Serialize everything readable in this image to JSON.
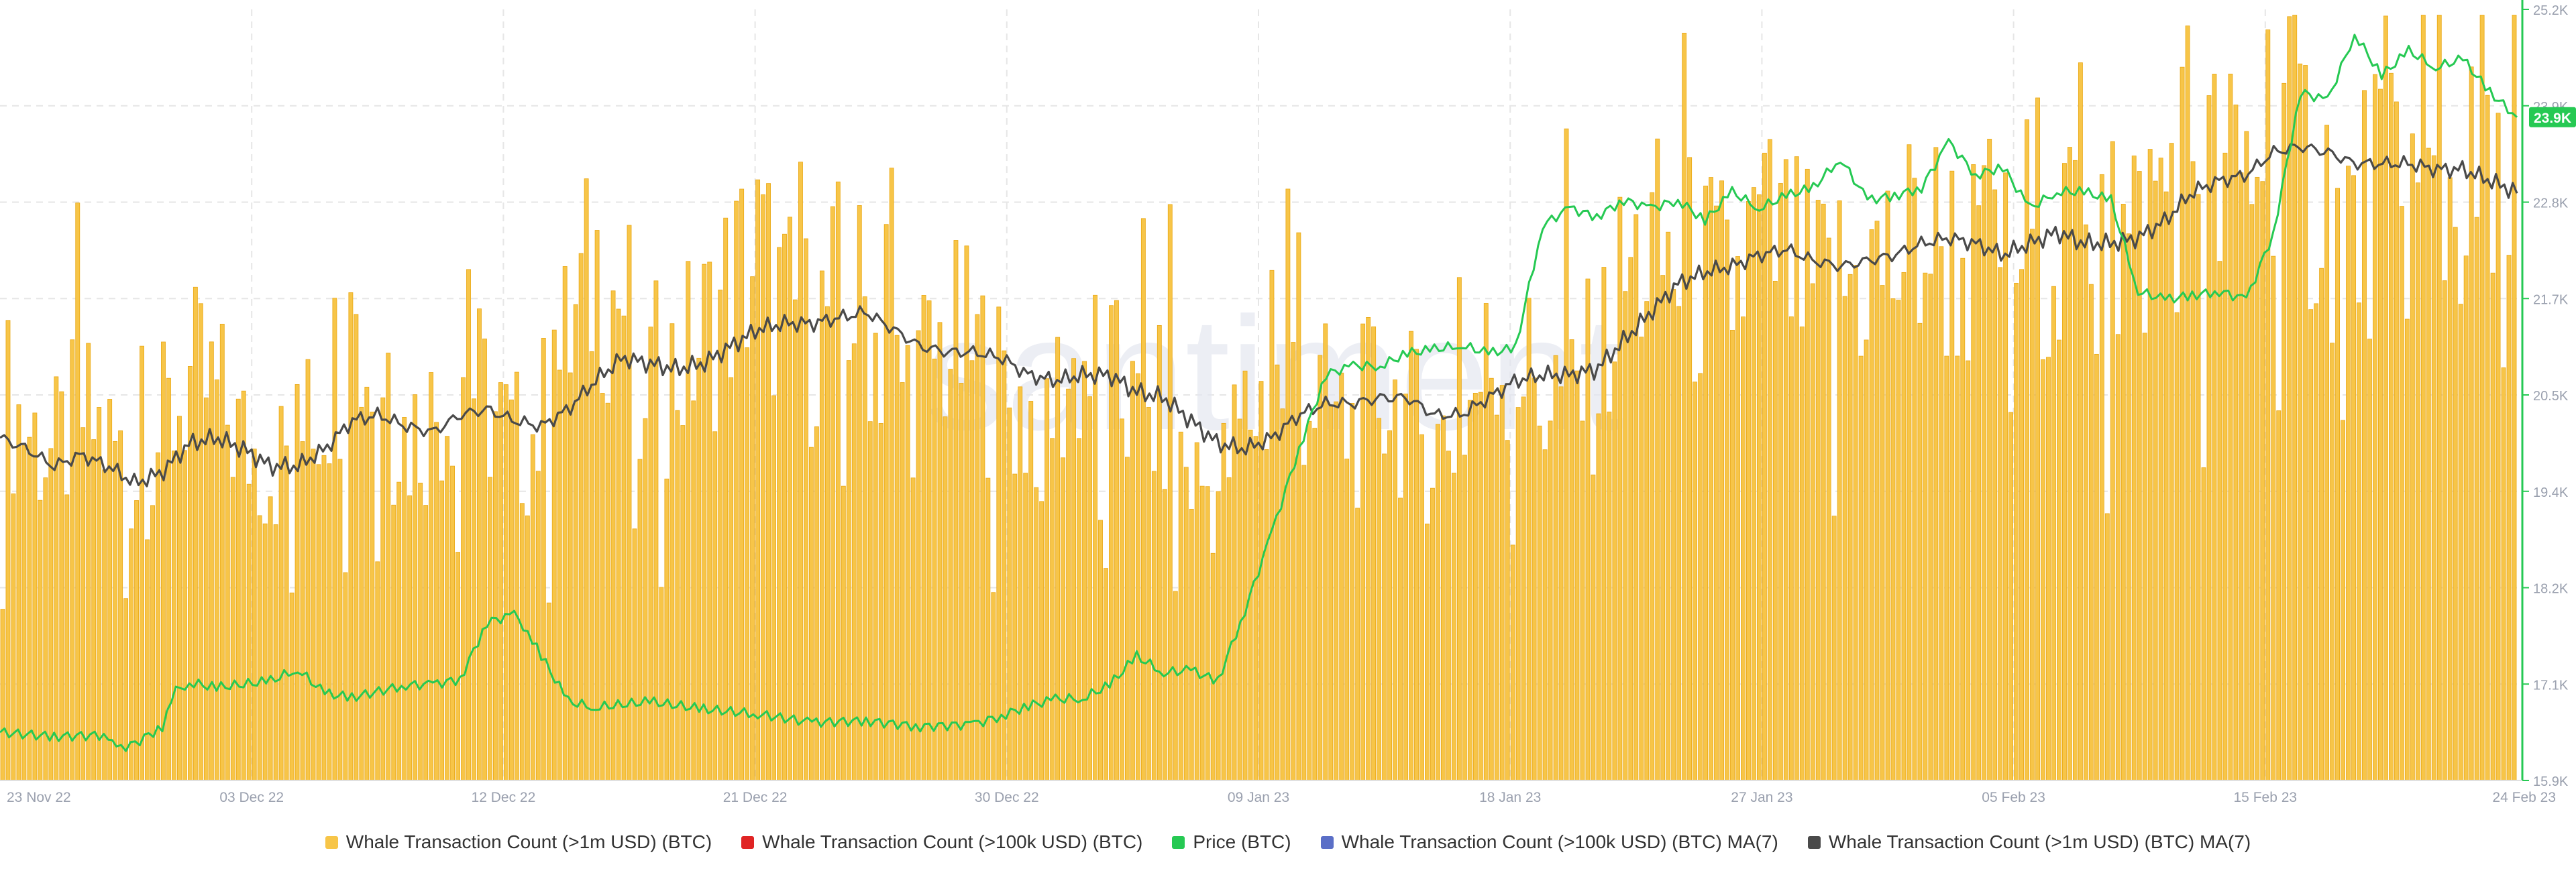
{
  "chart_data": {
    "type": "bar",
    "watermark": "santiment",
    "x_ticks": [
      "23 Nov 22",
      "03 Dec 22",
      "12 Dec 22",
      "21 Dec 22",
      "30 Dec 22",
      "09 Jan 23",
      "18 Jan 23",
      "27 Jan 23",
      "05 Feb 23",
      "15 Feb 23",
      "24 Feb 23"
    ],
    "y_right_ticks": [
      "25.2K",
      "23.9K",
      "22.8K",
      "21.7K",
      "20.5K",
      "19.4K",
      "18.2K",
      "17.1K",
      "15.9K"
    ],
    "y_right_range": [
      15900,
      25200
    ],
    "current_price_label": "23.9K",
    "current_price": 23900,
    "colors": {
      "whale_1m": "#f7c548",
      "whale_1m_edge": "#eaa815",
      "whale_100k": "#e02424",
      "price": "#26c953",
      "whale_100k_ma": "#5b6fc7",
      "whale_1m_ma": "#4a4a4a"
    },
    "x_day_range": [
      0,
      93
    ],
    "whale_1m_daily": [
      70,
      64,
      58,
      66,
      61,
      55,
      63,
      72,
      69,
      61,
      57,
      60,
      71,
      82,
      70,
      62,
      66,
      74,
      68,
      60,
      64,
      79,
      93,
      86,
      72,
      74,
      80,
      89,
      95,
      84,
      80,
      88,
      85,
      71,
      73,
      79,
      77,
      70,
      66,
      69,
      75,
      72,
      63,
      66,
      55,
      52,
      66,
      70,
      72,
      67,
      63,
      71,
      66,
      60,
      65,
      75,
      77,
      69,
      71,
      73,
      90,
      95,
      92,
      90,
      88,
      98,
      94,
      87,
      89,
      92,
      93,
      98,
      96,
      92,
      87,
      101,
      100,
      85,
      96,
      97,
      108,
      116,
      105,
      109,
      124,
      112,
      105,
      98,
      111,
      106,
      103,
      106,
      101,
      98
    ],
    "whale_1m_ma_daily": [
      60,
      58,
      55,
      57,
      55,
      52,
      54,
      59,
      60,
      58,
      55,
      55,
      58,
      63,
      64,
      62,
      61,
      64,
      65,
      63,
      62,
      65,
      70,
      74,
      73,
      72,
      73,
      76,
      79,
      80,
      80,
      81,
      82,
      79,
      76,
      75,
      75,
      74,
      71,
      70,
      71,
      71,
      68,
      67,
      63,
      59,
      58,
      60,
      64,
      66,
      66,
      67,
      67,
      64,
      64,
      67,
      70,
      71,
      71,
      72,
      77,
      82,
      87,
      89,
      90,
      92,
      93,
      91,
      90,
      91,
      92,
      94,
      95,
      94,
      92,
      94,
      96,
      94,
      94,
      95,
      98,
      103,
      105,
      106,
      110,
      111,
      110,
      108,
      108,
      108,
      107,
      107,
      105,
      103
    ],
    "price": [
      [
        0,
        16480
      ],
      [
        2,
        16430
      ],
      [
        4,
        16450
      ],
      [
        4.3,
        16280
      ],
      [
        5,
        16350
      ],
      [
        6,
        16550
      ],
      [
        6.5,
        16980
      ],
      [
        7,
        17080
      ],
      [
        8,
        17020
      ],
      [
        10,
        17100
      ],
      [
        11,
        17240
      ],
      [
        12,
        16950
      ],
      [
        13,
        16900
      ],
      [
        15,
        17050
      ],
      [
        16,
        17060
      ],
      [
        17,
        17120
      ],
      [
        18,
        17810
      ],
      [
        19,
        17900
      ],
      [
        19.5,
        17700
      ],
      [
        20,
        17400
      ],
      [
        21,
        16850
      ],
      [
        22,
        16780
      ],
      [
        24,
        16850
      ],
      [
        26,
        16760
      ],
      [
        28,
        16700
      ],
      [
        30,
        16600
      ],
      [
        32,
        16620
      ],
      [
        34,
        16550
      ],
      [
        36,
        16580
      ],
      [
        37,
        16680
      ],
      [
        38,
        16800
      ],
      [
        39,
        16880
      ],
      [
        40,
        16890
      ],
      [
        41,
        17050
      ],
      [
        42,
        17400
      ],
      [
        43,
        17200
      ],
      [
        44,
        17230
      ],
      [
        45,
        17100
      ],
      [
        46,
        17950
      ],
      [
        47,
        18900
      ],
      [
        48,
        19900
      ],
      [
        49,
        20800
      ],
      [
        50,
        20900
      ],
      [
        51,
        20900
      ],
      [
        52,
        21050
      ],
      [
        53,
        21100
      ],
      [
        54,
        21150
      ],
      [
        55,
        21050
      ],
      [
        56,
        21120
      ],
      [
        57,
        22600
      ],
      [
        58,
        22800
      ],
      [
        59,
        22700
      ],
      [
        60,
        22900
      ],
      [
        61,
        22800
      ],
      [
        62,
        22900
      ],
      [
        63,
        22650
      ],
      [
        64,
        23000
      ],
      [
        65,
        22800
      ],
      [
        66,
        22950
      ],
      [
        67,
        23050
      ],
      [
        68,
        23400
      ],
      [
        69,
        22900
      ],
      [
        70,
        22950
      ],
      [
        71,
        23050
      ],
      [
        72,
        23600
      ],
      [
        73,
        23200
      ],
      [
        74,
        23300
      ],
      [
        75,
        22800
      ],
      [
        76,
        23000
      ],
      [
        77,
        23000
      ],
      [
        78,
        22900
      ],
      [
        79,
        21800
      ],
      [
        80,
        21700
      ],
      [
        81,
        21750
      ],
      [
        82,
        21800
      ],
      [
        83,
        21700
      ],
      [
        84,
        22500
      ],
      [
        85,
        24200
      ],
      [
        86,
        24100
      ],
      [
        87,
        24900
      ],
      [
        88,
        24400
      ],
      [
        89,
        24700
      ],
      [
        90,
        24500
      ],
      [
        91,
        24600
      ],
      [
        92,
        24200
      ],
      [
        93,
        23900
      ]
    ]
  },
  "legend": [
    {
      "label": "Whale Transaction Count (>1m USD) (BTC)",
      "color": "#f7c548"
    },
    {
      "label": "Whale Transaction Count (>100k USD) (BTC)",
      "color": "#e02424"
    },
    {
      "label": "Price (BTC)",
      "color": "#26c953"
    },
    {
      "label": "Whale Transaction Count (>100k USD) (BTC) MA(7)",
      "color": "#5b6fc7"
    },
    {
      "label": "Whale Transaction Count (>1m USD) (BTC) MA(7)",
      "color": "#4a4a4a"
    }
  ]
}
